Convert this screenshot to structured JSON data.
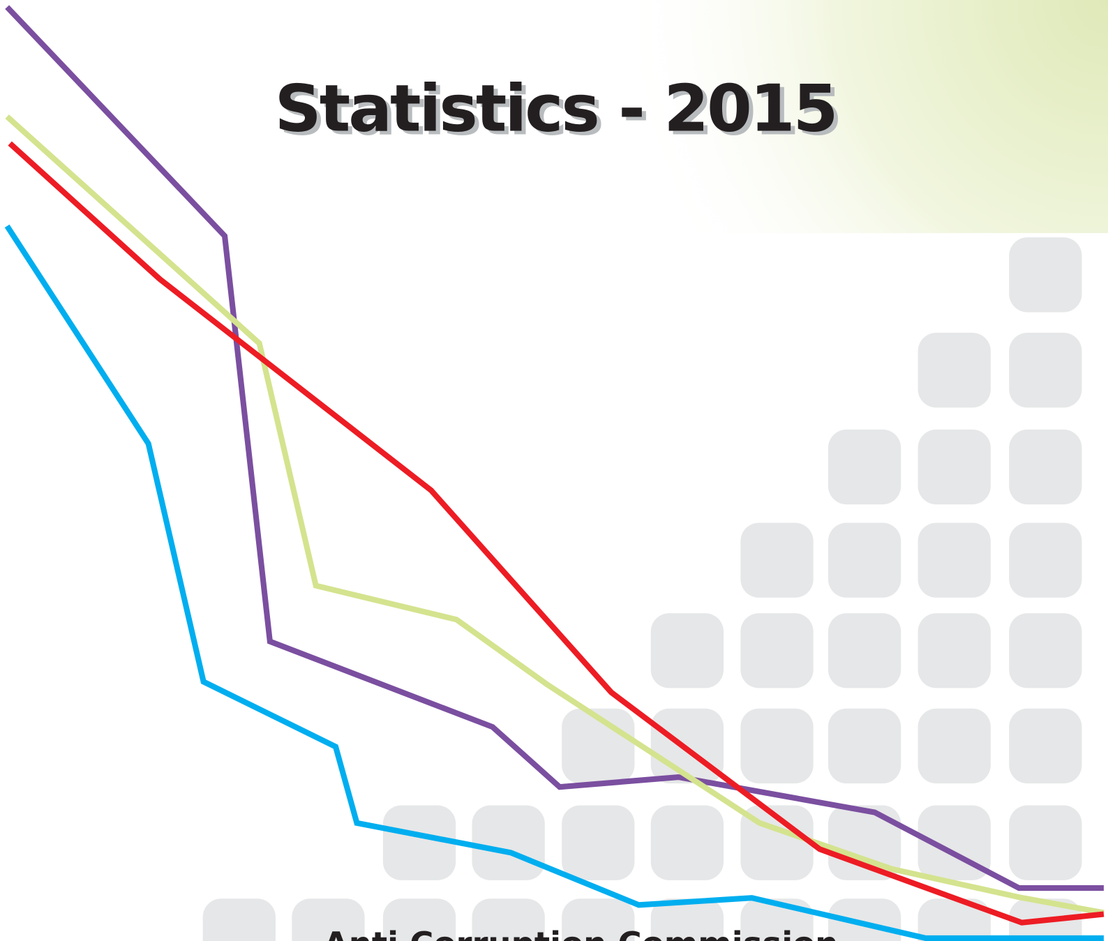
{
  "title": "Statistics - 2015",
  "organization": "Anti Corruption Commission"
}
